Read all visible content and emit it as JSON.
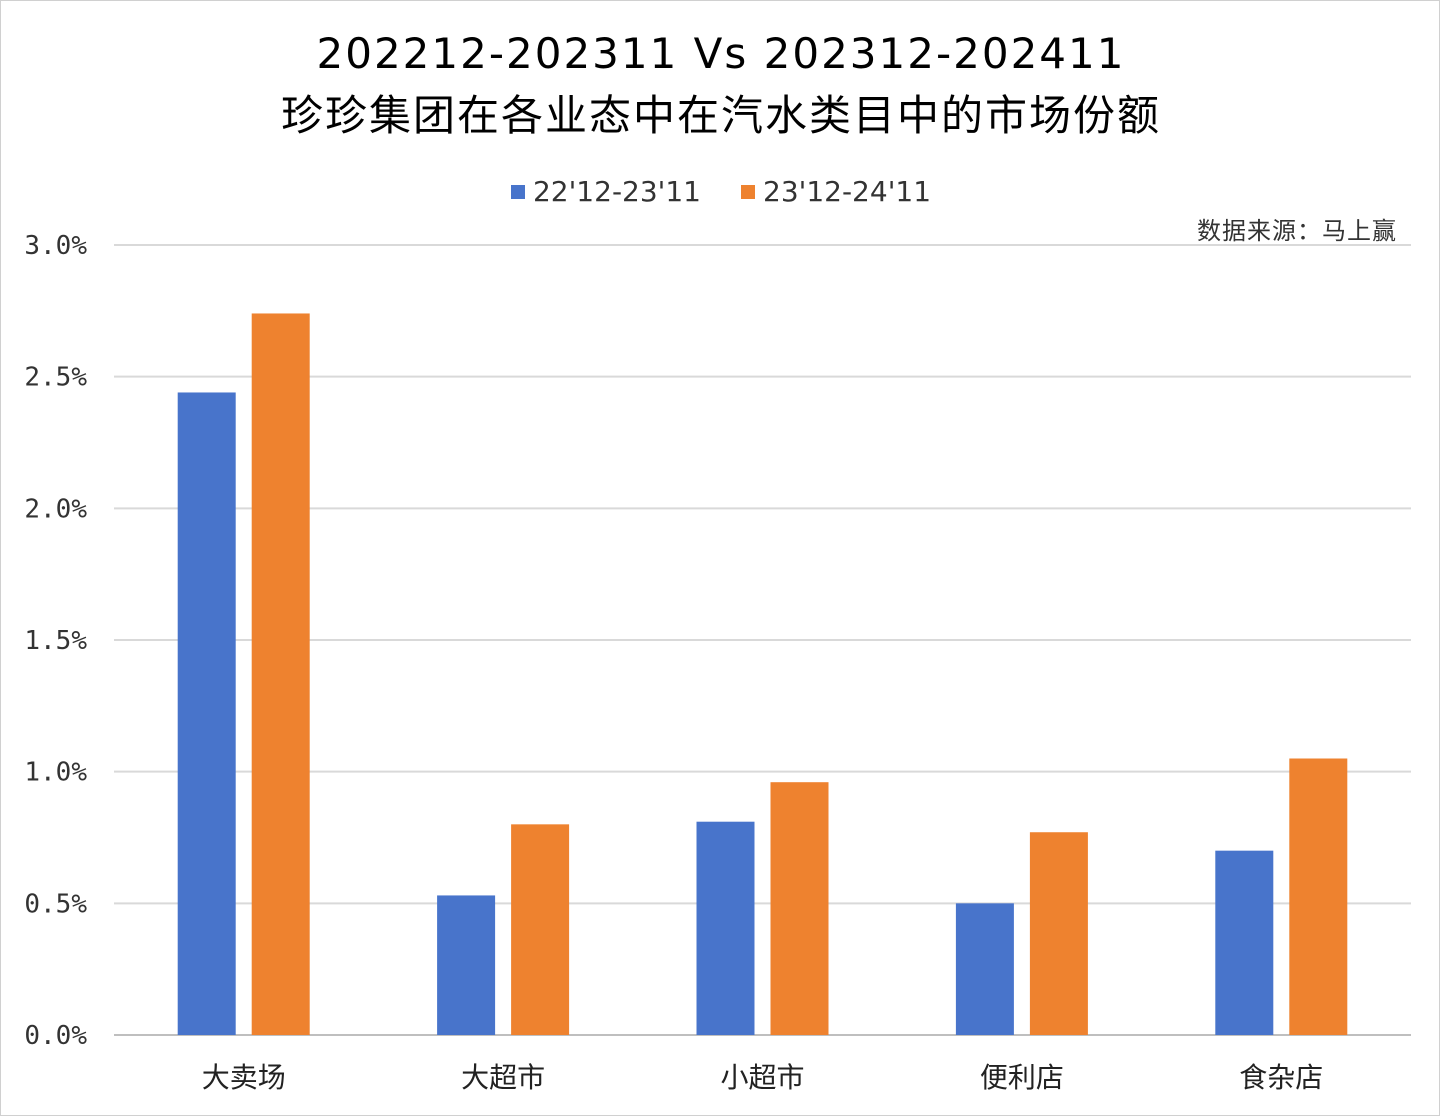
{
  "chart_data": {
    "type": "bar",
    "title": "202212-202311 Vs 202312-202411",
    "subtitle": "珍珍集团在各业态中在汽水类目中的市场份额",
    "source_note": "数据来源：马上赢",
    "categories": [
      "大卖场",
      "大超市",
      "小超市",
      "便利店",
      "食杂店"
    ],
    "series": [
      {
        "name": "22'12-23'11",
        "color": "#4874cb",
        "values": [
          2.44,
          0.53,
          0.81,
          0.5,
          0.7
        ]
      },
      {
        "name": "23'12-24'11",
        "color": "#ee822f",
        "values": [
          2.74,
          0.8,
          0.96,
          0.77,
          1.05
        ]
      }
    ],
    "ylim": [
      0,
      3.0
    ],
    "yticks": [
      "0.0%",
      "0.5%",
      "1.0%",
      "1.5%",
      "2.0%",
      "2.5%",
      "3.0%"
    ],
    "ytick_values": [
      0,
      0.5,
      1.0,
      1.5,
      2.0,
      2.5,
      3.0
    ],
    "legend_position": "top",
    "grid": true
  }
}
